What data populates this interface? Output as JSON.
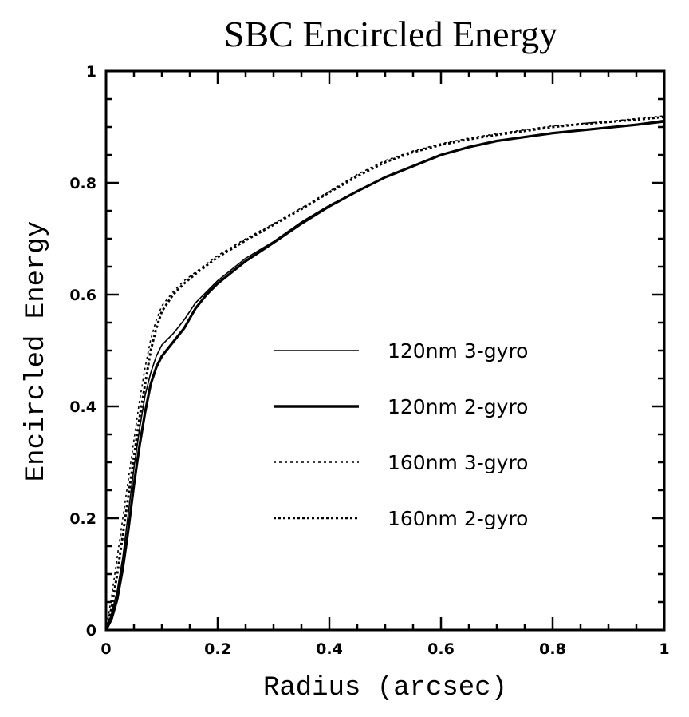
{
  "chart_data": {
    "type": "line",
    "title": "SBC Encircled Energy",
    "xlabel": "Radius (arcsec)",
    "ylabel": "Encircled Energy",
    "xlim": [
      0,
      1
    ],
    "ylim": [
      0,
      1
    ],
    "grid": false,
    "x_ticks": [
      {
        "value": 0,
        "label": "0"
      },
      {
        "value": 0.2,
        "label": "0.2"
      },
      {
        "value": 0.4,
        "label": "0.4"
      },
      {
        "value": 0.6,
        "label": "0.6"
      },
      {
        "value": 0.8,
        "label": "0.8"
      },
      {
        "value": 1,
        "label": "1"
      }
    ],
    "y_ticks": [
      {
        "value": 0,
        "label": "0"
      },
      {
        "value": 0.2,
        "label": "0.2"
      },
      {
        "value": 0.4,
        "label": "0.4"
      },
      {
        "value": 0.6,
        "label": "0.6"
      },
      {
        "value": 0.8,
        "label": "0.8"
      },
      {
        "value": 1,
        "label": "1"
      }
    ],
    "minor_tick_step": 0.05,
    "legend_position": "center-right",
    "series": [
      {
        "name": "120nm 3-gyro",
        "style": "solid-thin",
        "x": [
          0,
          0.01,
          0.02,
          0.03,
          0.04,
          0.05,
          0.06,
          0.07,
          0.08,
          0.09,
          0.1,
          0.12,
          0.14,
          0.16,
          0.18,
          0.2,
          0.25,
          0.3,
          0.35,
          0.4,
          0.45,
          0.5,
          0.55,
          0.6,
          0.65,
          0.7,
          0.75,
          0.8,
          0.85,
          0.9,
          0.95,
          1
        ],
        "y": [
          0,
          0.03,
          0.07,
          0.13,
          0.21,
          0.29,
          0.36,
          0.42,
          0.46,
          0.49,
          0.51,
          0.53,
          0.555,
          0.585,
          0.605,
          0.625,
          0.665,
          0.695,
          0.73,
          0.76,
          0.785,
          0.81,
          0.83,
          0.85,
          0.865,
          0.875,
          0.882,
          0.89,
          0.895,
          0.9,
          0.905,
          0.912
        ]
      },
      {
        "name": "120nm 2-gyro",
        "style": "solid-thick",
        "x": [
          0,
          0.01,
          0.02,
          0.03,
          0.04,
          0.05,
          0.06,
          0.07,
          0.08,
          0.09,
          0.1,
          0.12,
          0.14,
          0.16,
          0.18,
          0.2,
          0.25,
          0.3,
          0.35,
          0.4,
          0.45,
          0.5,
          0.55,
          0.6,
          0.65,
          0.7,
          0.75,
          0.8,
          0.85,
          0.9,
          0.95,
          1
        ],
        "y": [
          0,
          0.02,
          0.055,
          0.11,
          0.18,
          0.26,
          0.33,
          0.39,
          0.44,
          0.47,
          0.49,
          0.515,
          0.54,
          0.575,
          0.6,
          0.62,
          0.66,
          0.693,
          0.727,
          0.758,
          0.785,
          0.81,
          0.83,
          0.85,
          0.864,
          0.875,
          0.882,
          0.889,
          0.894,
          0.899,
          0.904,
          0.91
        ]
      },
      {
        "name": "160nm 3-gyro",
        "style": "dotted-thin",
        "x": [
          0,
          0.01,
          0.02,
          0.03,
          0.04,
          0.05,
          0.06,
          0.07,
          0.08,
          0.09,
          0.1,
          0.12,
          0.14,
          0.16,
          0.18,
          0.2,
          0.25,
          0.3,
          0.35,
          0.4,
          0.45,
          0.5,
          0.55,
          0.6,
          0.65,
          0.7,
          0.75,
          0.8,
          0.85,
          0.9,
          0.95,
          1
        ],
        "y": [
          0,
          0.06,
          0.13,
          0.2,
          0.27,
          0.34,
          0.41,
          0.47,
          0.52,
          0.555,
          0.58,
          0.605,
          0.625,
          0.64,
          0.655,
          0.67,
          0.7,
          0.727,
          0.755,
          0.785,
          0.815,
          0.84,
          0.857,
          0.87,
          0.88,
          0.888,
          0.895,
          0.902,
          0.906,
          0.91,
          0.915,
          0.92
        ]
      },
      {
        "name": "160nm 2-gyro",
        "style": "dotted-thick",
        "x": [
          0,
          0.01,
          0.02,
          0.03,
          0.04,
          0.05,
          0.06,
          0.07,
          0.08,
          0.09,
          0.1,
          0.12,
          0.14,
          0.16,
          0.18,
          0.2,
          0.25,
          0.3,
          0.35,
          0.4,
          0.45,
          0.5,
          0.55,
          0.6,
          0.65,
          0.7,
          0.75,
          0.8,
          0.85,
          0.9,
          0.95,
          1
        ],
        "y": [
          0,
          0.04,
          0.1,
          0.17,
          0.24,
          0.31,
          0.38,
          0.44,
          0.5,
          0.54,
          0.57,
          0.6,
          0.62,
          0.637,
          0.652,
          0.667,
          0.697,
          0.725,
          0.753,
          0.783,
          0.812,
          0.837,
          0.855,
          0.868,
          0.878,
          0.886,
          0.893,
          0.9,
          0.905,
          0.909,
          0.913,
          0.918
        ]
      }
    ]
  }
}
